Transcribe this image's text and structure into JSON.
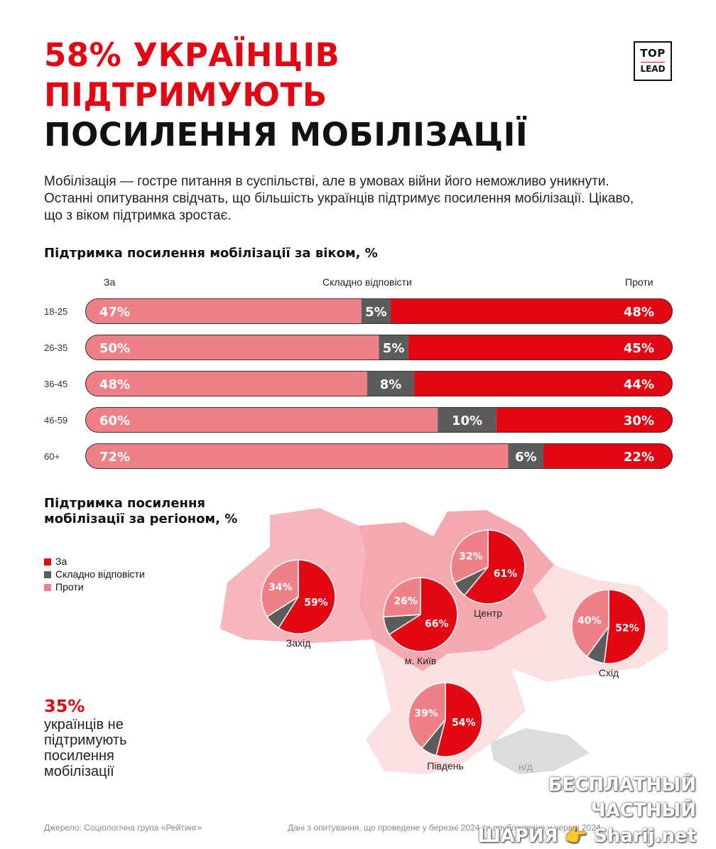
{
  "title": {
    "line1": "58% УКРАЇНЦІВ",
    "line2": "ПІДТРИМУЮТЬ",
    "line3": "ПОСИЛЕННЯ МОБІЛІЗАЦІЇ"
  },
  "logo": {
    "line1": "TOP",
    "line2": "LEAD"
  },
  "intro": "Мобілізація — гостре питання в суспільстві, але в умовах війни його неможливо уникнути. Останні опитування свідчать, що більшість українців підтримує посилення мобілізації. Цікаво, що з віком підтримка зростає.",
  "colors": {
    "za": "#e30613",
    "neutral": "#5c5c5c",
    "proty": "#f08088",
    "map_light": "#fbdfe1",
    "map_mid": "#f6b7bc"
  },
  "chart_data": [
    {
      "type": "bar",
      "title": "Підтримка посилення мобілізації за віком, %",
      "legend": [
        "За",
        "Складно відповісти",
        "Проти"
      ],
      "categories": [
        "18-25",
        "26-35",
        "36-45",
        "46-59",
        "60+"
      ],
      "series": [
        {
          "name": "За",
          "values": [
            47,
            50,
            48,
            60,
            72
          ]
        },
        {
          "name": "Складно відповісти",
          "values": [
            5,
            5,
            8,
            10,
            6
          ]
        },
        {
          "name": "Проти",
          "values": [
            48,
            45,
            44,
            30,
            22
          ]
        }
      ]
    },
    {
      "type": "pie",
      "title": "Підтримка посилення мобілізації за регіоном, %",
      "legend": [
        "За",
        "Складно відповісти",
        "Проти"
      ],
      "regions": [
        {
          "name": "Захід",
          "za": 59,
          "proty": 34
        },
        {
          "name": "м. Київ",
          "za": 66,
          "proty": 26
        },
        {
          "name": "Центр",
          "za": 61,
          "proty": 32
        },
        {
          "name": "Схід",
          "za": 52,
          "proty": 40
        },
        {
          "name": "Південь",
          "za": 54,
          "proty": 39
        }
      ],
      "no_data_label": "н/д"
    }
  ],
  "stat": {
    "value": "35%",
    "text": "українців не підтримують посилення мобілізації"
  },
  "source": "Джерело: Соціологічна група «Рейтинг»",
  "note": "Дані з опитування, що проведене у березні 2024 та опубліковане у червні 2024.",
  "watermark": {
    "line1": "БЕСПЛАТНЫЙ ЧАСТНЫЙ",
    "line2": "ШАРИЯ 👉 Sharij.net"
  }
}
